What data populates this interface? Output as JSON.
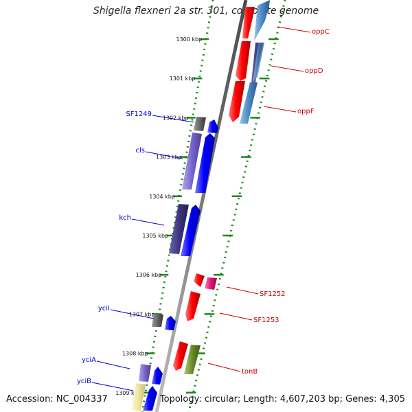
{
  "header": {
    "title": "Shigella flexneri 2a str. 301, complete genome"
  },
  "footer": {
    "accession": "Accession: NC_004337",
    "topology": "Topology: circular; Length: 4,607,203 bp; Genes: 4,305"
  },
  "colors": {
    "backbone": "#8a8a8a",
    "tick": "#1a8a1a",
    "forward_label": "#0000cc",
    "reverse_label": "#cc0000"
  },
  "ruler": [
    {
      "kbp": 1300,
      "label": "1300 kbp"
    },
    {
      "kbp": 1301,
      "label": "1301 kbp"
    },
    {
      "kbp": 1302,
      "label": "1302 kbp"
    },
    {
      "kbp": 1303,
      "label": "1303 kbp"
    },
    {
      "kbp": 1304,
      "label": "1304 kbp"
    },
    {
      "kbp": 1305,
      "label": "1305 kbp"
    },
    {
      "kbp": 1306,
      "label": "1306 kbp"
    },
    {
      "kbp": 1307,
      "label": "1307 kbp"
    },
    {
      "kbp": 1308,
      "label": "1308 kbp"
    },
    {
      "kbp": 1309,
      "label": "1309 kbp"
    }
  ],
  "genes": [
    {
      "name": "oppC",
      "strand": "reverse",
      "labeled": true
    },
    {
      "name": "oppD",
      "strand": "reverse",
      "labeled": true
    },
    {
      "name": "oppF",
      "strand": "reverse",
      "labeled": true
    },
    {
      "name": "SF1249",
      "strand": "forward",
      "labeled": true
    },
    {
      "name": "cls",
      "strand": "forward",
      "labeled": true
    },
    {
      "name": "kch",
      "strand": "forward",
      "labeled": true
    },
    {
      "name": "SF1252",
      "strand": "reverse",
      "labeled": true
    },
    {
      "name": "SF1253",
      "strand": "reverse",
      "labeled": true
    },
    {
      "name": "yciI",
      "strand": "forward",
      "labeled": true
    },
    {
      "name": "tonB",
      "strand": "reverse",
      "labeled": true
    },
    {
      "name": "yciA",
      "strand": "forward",
      "labeled": true
    },
    {
      "name": "yciB",
      "strand": "forward",
      "labeled": true
    }
  ]
}
